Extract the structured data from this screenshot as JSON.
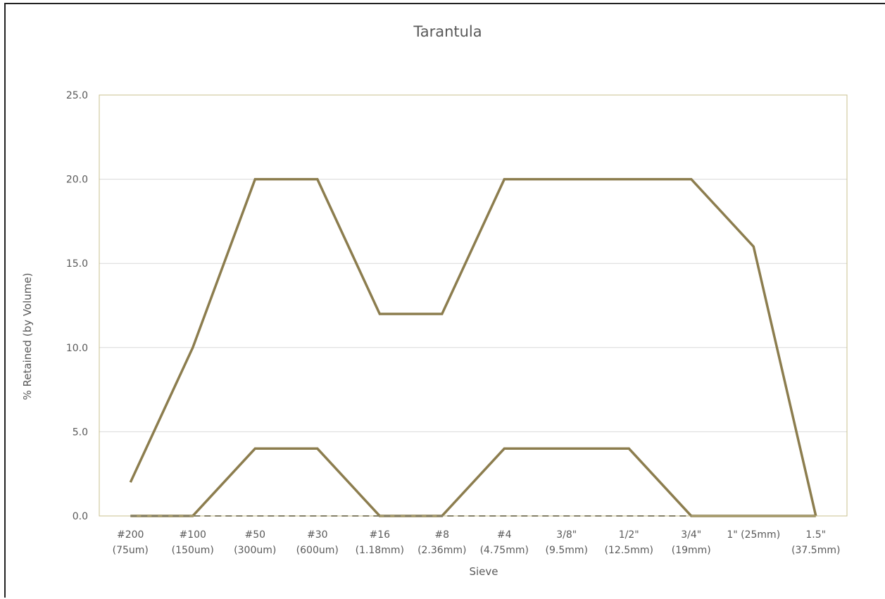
{
  "chart_data": {
    "type": "line",
    "title": "Tarantula",
    "xlabel": "Sieve",
    "ylabel": "% Retained (by Volume)",
    "ylim": [
      0,
      25
    ],
    "yticks": [
      "0.0",
      "5.0",
      "10.0",
      "15.0",
      "20.0",
      "25.0"
    ],
    "grid": true,
    "legend": "none",
    "categories": [
      [
        "#200",
        "(75um)"
      ],
      [
        "#100",
        "(150um)"
      ],
      [
        "#50",
        "(300um)"
      ],
      [
        "#30",
        "(600um)"
      ],
      [
        "#16",
        "(1.18mm)"
      ],
      [
        "#8",
        "(2.36mm)"
      ],
      [
        "#4",
        "(4.75mm)"
      ],
      [
        "3/8\"",
        "(9.5mm)"
      ],
      [
        "1/2\"",
        "(12.5mm)"
      ],
      [
        "3/4\"",
        "(19mm)"
      ],
      [
        "1\" (25mm)",
        ""
      ],
      [
        "1.5\"",
        "(37.5mm)"
      ]
    ],
    "series": [
      {
        "values": [
          2,
          10,
          20,
          20,
          12,
          12,
          20,
          20,
          20,
          20,
          16,
          0
        ],
        "color": "#8c7d4e",
        "style": "solid"
      },
      {
        "values": [
          0,
          0,
          4,
          4,
          0,
          0,
          4,
          4,
          4,
          0,
          0,
          0
        ],
        "color": "#8c7d4e",
        "style": "solid"
      },
      {
        "values": [
          0,
          0,
          0,
          0,
          0,
          0,
          0,
          0,
          0,
          0,
          null,
          null
        ],
        "color": "#404040",
        "style": "dashed"
      }
    ],
    "colors": {
      "plot_border": "#c9c08f",
      "grid": "#d9d9d9",
      "text": "#595959"
    }
  }
}
